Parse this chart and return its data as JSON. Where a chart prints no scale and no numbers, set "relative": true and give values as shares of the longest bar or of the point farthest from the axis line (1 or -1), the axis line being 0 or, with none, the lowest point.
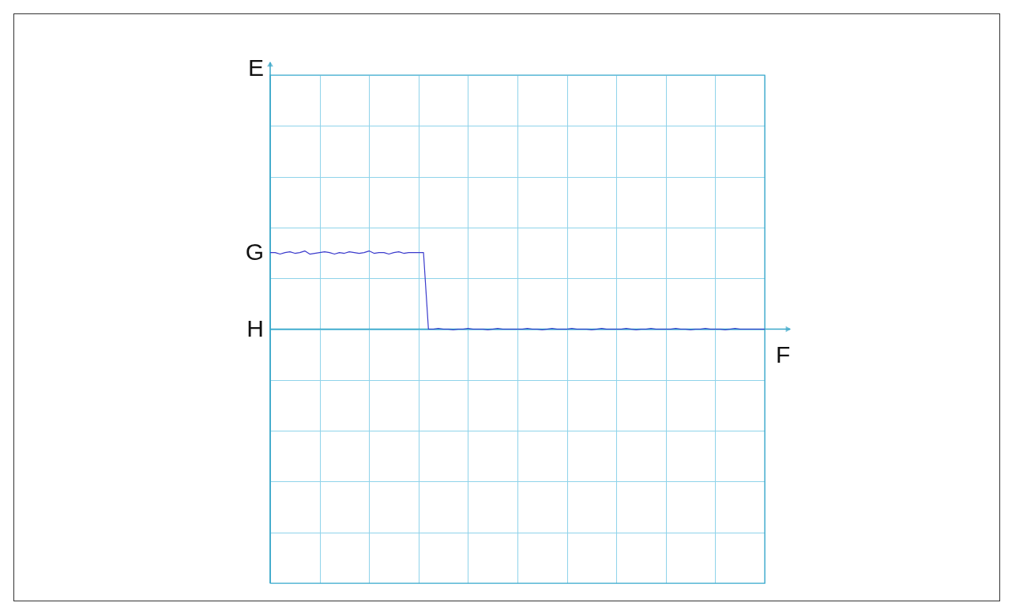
{
  "chart_data": {
    "type": "line",
    "relative": true,
    "grid": true,
    "xlabel": "F",
    "categories": [
      null,
      null,
      null,
      null,
      null,
      null,
      null,
      null,
      null,
      null,
      null,
      null,
      null,
      null,
      null,
      null,
      null,
      null,
      null,
      null,
      null,
      null,
      null,
      null,
      null,
      null,
      null,
      null,
      null,
      null,
      null,
      null,
      null,
      null,
      null,
      null,
      null,
      null,
      null,
      null,
      null,
      null,
      null,
      null,
      null,
      null,
      null,
      null,
      null,
      null,
      null,
      null,
      null,
      null,
      null,
      null,
      null,
      null,
      null,
      null,
      null,
      null,
      null,
      null,
      null,
      null,
      null,
      null,
      null,
      null,
      null,
      null,
      null,
      null,
      null,
      null,
      null,
      null,
      null,
      null,
      null,
      null,
      null,
      null,
      null,
      null,
      null,
      null,
      null,
      null,
      null,
      null,
      null,
      null,
      null,
      null,
      null,
      null,
      null,
      null,
      null
    ],
    "series": [
      {
        "color": "#3a3acc",
        "values": [
          0.98,
          0.98,
          0.96,
          0.98,
          0.99,
          0.97,
          0.98,
          1,
          0.96,
          0.97,
          0.98,
          0.99,
          0.98,
          0.96,
          0.98,
          0.97,
          0.99,
          0.98,
          0.97,
          0.98,
          1,
          0.97,
          0.98,
          0.98,
          0.96,
          0.98,
          0.99,
          0.97,
          0.98,
          0.98,
          0.98,
          0.98,
          0,
          0,
          0.01,
          0,
          0,
          -0.01,
          0,
          0,
          0.01,
          0,
          0,
          0,
          -0.01,
          0,
          0.01,
          0,
          0,
          0,
          0,
          0,
          0.01,
          0,
          0,
          -0.01,
          0,
          0.01,
          0,
          0,
          0,
          0.01,
          0,
          0,
          0,
          -0.01,
          0,
          0.01,
          0,
          0,
          0,
          0,
          0.01,
          0,
          -0.01,
          0,
          0,
          0.01,
          0,
          0,
          0,
          0,
          0.01,
          0,
          0,
          -0.01,
          0,
          0,
          0.01,
          0,
          0,
          0,
          -0.01,
          0,
          0.01,
          0,
          0,
          0,
          0,
          0,
          0
        ]
      }
    ],
    "annotations": [
      "E",
      "G",
      "H"
    ]
  }
}
